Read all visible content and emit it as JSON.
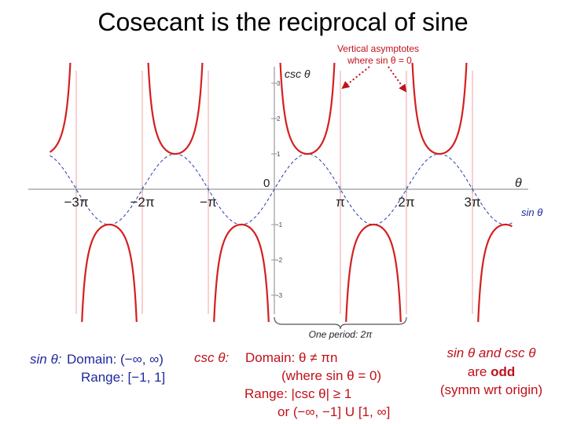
{
  "title": "Cosecant is the reciprocal of sine",
  "chart_data": {
    "type": "line",
    "title": "Cosecant is the reciprocal of sine",
    "x_range_in_pi": [
      -3.4,
      3.6
    ],
    "y_range": [
      -4.2,
      3.35
    ],
    "x_axis_label": "θ",
    "y_axis_label": "csc θ",
    "origin_label": "0",
    "x_tick_labels": [
      "−3π",
      "−2π",
      "−π",
      "π",
      "2π",
      "3π"
    ],
    "x_tick_values_in_pi": [
      -3,
      -2,
      -1,
      1,
      2,
      3
    ],
    "y_tick_values": [
      3,
      2,
      1,
      -1,
      -2,
      -3
    ],
    "y_tick_labels": [
      "3",
      "2",
      "1",
      "-1",
      "-2",
      "-3"
    ],
    "series": [
      {
        "name": "csc θ",
        "function": "1/sin(θ)",
        "style": "solid",
        "color": "#d42020"
      },
      {
        "name": "sin θ",
        "function": "sin(θ)",
        "style": "dashed",
        "color": "#2a3bb0"
      }
    ],
    "asymptotes_in_pi": [
      -3,
      -2,
      -1,
      0,
      1,
      2,
      3
    ],
    "annotations": {
      "asymptote_note_line1": "Vertical asymptotes",
      "asymptote_note_line2": "where sin θ = 0",
      "period_note": "One period: 2π",
      "sin_label": "sin θ"
    }
  },
  "notes": {
    "sin_label": "sin θ:",
    "sin_domain": "Domain: (−∞, ∞)",
    "sin_range": "Range: [−1, 1]",
    "csc_label": "csc θ:",
    "csc_domain": "Domain: θ ≠ πn",
    "csc_domain_note": "(where sin θ = 0)",
    "csc_range": "Range: |csc θ| ≥ 1",
    "csc_range_alt": "or (−∞, −1] U [1, ∞]",
    "odd_line1": "sin θ and csc θ",
    "odd_line2_prefix": "are ",
    "odd_line2_bold": "odd",
    "odd_line3": "(symm wrt origin)"
  }
}
